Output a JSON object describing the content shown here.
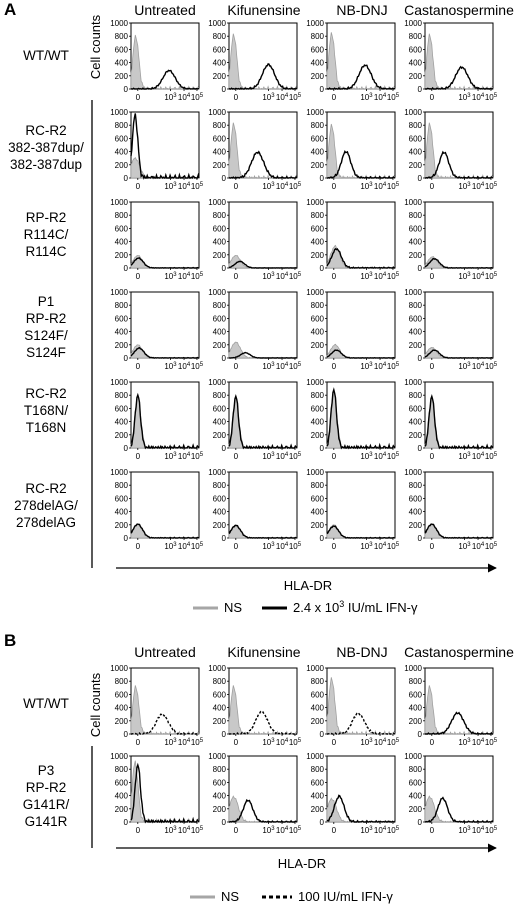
{
  "chart_data": [
    {
      "panel": "A",
      "type": "histogram-grid",
      "columns": [
        "Untreated",
        "Kifunensine",
        "NB-DNJ",
        "Castanospermine"
      ],
      "rows": [
        [
          "WT/WT"
        ],
        [
          "RC-R2",
          "382-387dup/",
          "382-387dup"
        ],
        [
          "RP-R2",
          "R114C/",
          "R114C"
        ],
        [
          "P1",
          "RP-R2",
          "S124F/",
          "S124F"
        ],
        [
          "RC-R2",
          "T168N/",
          "T168N"
        ],
        [
          "RC-R2",
          "278delAG/",
          "278delAG"
        ]
      ],
      "ylabel": "Cell counts",
      "xlabel": "HLA-DR",
      "yticks": [
        "0",
        "200",
        "400",
        "600",
        "800",
        "1000"
      ],
      "ylim": [
        0,
        1000
      ],
      "xticks": [
        "0",
        "10",
        "4",
        "10",
        "5"
      ],
      "series": [
        {
          "name": "NS",
          "color": "#a6a6a6"
        },
        {
          "name": "2.4 x 10",
          "sup": "3",
          "suffix": " IU/mL IFN-γ",
          "color": "#000000"
        }
      ],
      "curves": [
        [
          {
            "ns": [
              0.35,
              800
            ],
            "ifn": [
              2.8,
              280
            ]
          },
          {
            "ns": [
              0.35,
              820
            ],
            "ifn": [
              2.9,
              370
            ]
          },
          {
            "ns": [
              0.35,
              840
            ],
            "ifn": [
              2.8,
              360
            ]
          },
          {
            "ns": [
              0.35,
              820
            ],
            "ifn": [
              2.7,
              330
            ]
          }
        ],
        [
          {
            "ns": [
              0.3,
              300
            ],
            "ifn": [
              0.3,
              950
            ]
          },
          {
            "ns": [
              0.35,
              820
            ],
            "ifn": [
              2.1,
              390
            ]
          },
          {
            "ns": [
              0.35,
              800
            ],
            "ifn": [
              1.4,
              400
            ]
          },
          {
            "ns": [
              0.35,
              820
            ],
            "ifn": [
              1.4,
              390
            ]
          }
        ],
        [
          {
            "ns": [
              0.5,
              190
            ],
            "ifn": [
              0.55,
              150
            ]
          },
          {
            "ns": [
              0.5,
              190
            ],
            "ifn": [
              0.8,
              100
            ]
          },
          {
            "ns": [
              0.6,
              330
            ],
            "ifn": [
              0.7,
              290
            ]
          },
          {
            "ns": [
              0.55,
              170
            ],
            "ifn": [
              0.7,
              140
            ]
          }
        ],
        [
          {
            "ns": [
              0.5,
              200
            ],
            "ifn": [
              0.6,
              150
            ]
          },
          {
            "ns": [
              0.5,
              240
            ],
            "ifn": [
              1.2,
              80
            ]
          },
          {
            "ns": [
              0.6,
              200
            ],
            "ifn": [
              0.7,
              120
            ]
          },
          {
            "ns": [
              0.5,
              160
            ],
            "ifn": [
              0.7,
              120
            ]
          }
        ],
        [
          {
            "ns": [
              0.5,
              780
            ],
            "ifn": [
              0.5,
              800
            ]
          },
          {
            "ns": [
              0.5,
              760
            ],
            "ifn": [
              0.5,
              780
            ]
          },
          {
            "ns": [
              0.5,
              860
            ],
            "ifn": [
              0.5,
              880
            ]
          },
          {
            "ns": [
              0.5,
              760
            ],
            "ifn": [
              0.5,
              780
            ]
          }
        ],
        [
          {
            "ns": [
              0.5,
              200
            ],
            "ifn": [
              0.5,
              210
            ]
          },
          {
            "ns": [
              0.5,
              200
            ],
            "ifn": [
              0.5,
              190
            ]
          },
          {
            "ns": [
              0.5,
              200
            ],
            "ifn": [
              0.5,
              180
            ]
          },
          {
            "ns": [
              0.5,
              200
            ],
            "ifn": [
              0.5,
              210
            ]
          }
        ]
      ]
    },
    {
      "panel": "B",
      "type": "histogram-grid",
      "columns": [
        "Untreated",
        "Kifunensine",
        "NB-DNJ",
        "Castanospermine"
      ],
      "rows": [
        [
          "WT/WT"
        ],
        [
          "P3",
          "RP-R2",
          "G141R/",
          "G141R"
        ]
      ],
      "ylabel": "Cell counts",
      "xlabel": "HLA-DR",
      "yticks": [
        "0",
        "200",
        "400",
        "600",
        "800",
        "1000"
      ],
      "ylim": [
        0,
        1000
      ],
      "xticks": [
        "0",
        "10",
        "3",
        "10",
        "4",
        "10",
        "5"
      ],
      "series": [
        {
          "name": "NS",
          "color": "#a6a6a6"
        },
        {
          "name": "100 IU/mL IFN-γ",
          "color": "#000000",
          "dashed": true
        }
      ],
      "curves": [
        [
          {
            "ns": [
              0.35,
              720
            ],
            "ifn": [
              2.3,
              300
            ],
            "ifnDashed": true
          },
          {
            "ns": [
              0.35,
              720
            ],
            "ifn": [
              2.4,
              330
            ],
            "ifnDashed": true
          },
          {
            "ns": [
              0.35,
              840
            ],
            "ifn": [
              2.3,
              310
            ],
            "ifnDashed": true
          },
          {
            "ns": [
              0.35,
              720
            ],
            "ifn": [
              2.4,
              320
            ],
            "ifnDashed": false
          }
        ],
        [
          {
            "ns": [
              0.3,
              900
            ],
            "ifn": [
              0.5,
              860
            ],
            "ifnDashed": false
          },
          {
            "ns": [
              0.35,
              380
            ],
            "ifn": [
              1.4,
              330
            ],
            "ifnDashed": false
          },
          {
            "ns": [
              0.35,
              350
            ],
            "ifn": [
              0.9,
              390
            ],
            "ifnDashed": false
          },
          {
            "ns": [
              0.35,
              380
            ],
            "ifn": [
              1.3,
              360
            ],
            "ifnDashed": false
          }
        ]
      ]
    }
  ]
}
